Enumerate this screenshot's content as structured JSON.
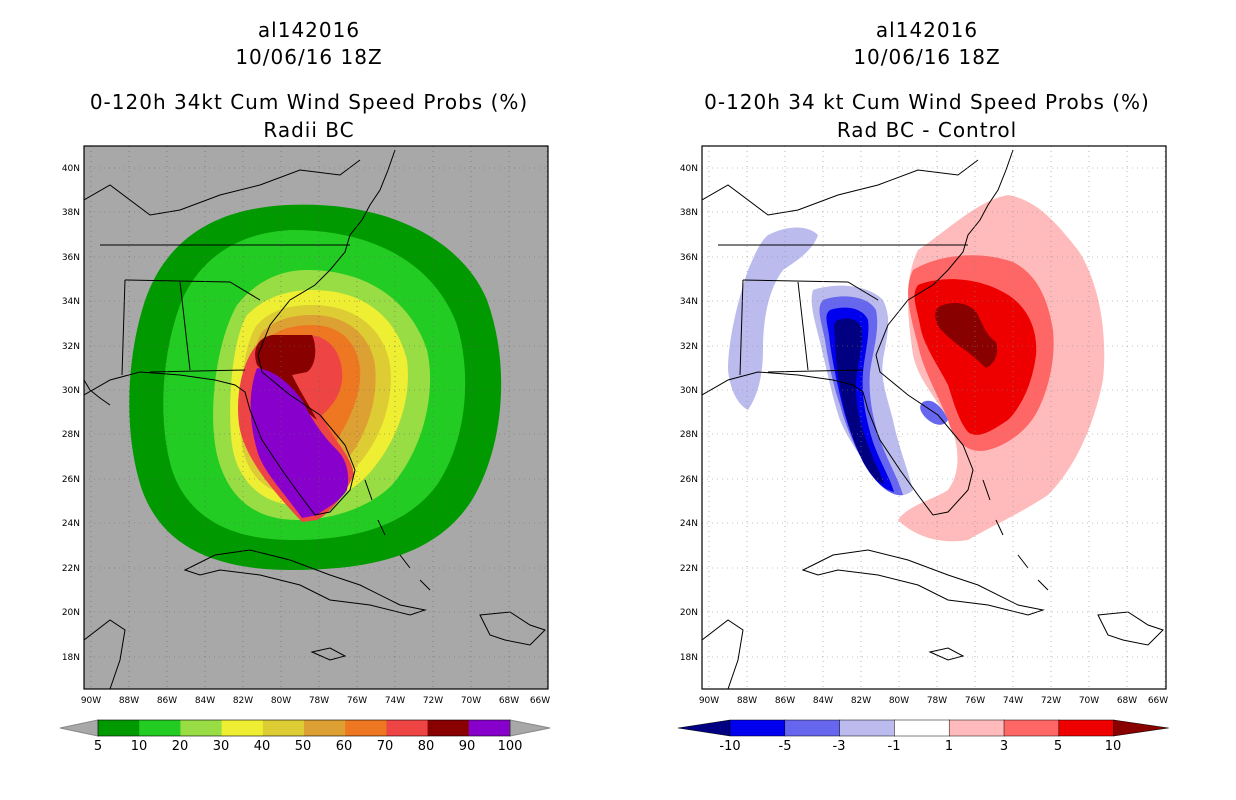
{
  "left_panel": {
    "storm_id": "al142016",
    "datetime": "10/06/16 18Z",
    "title": "0-120h 34kt Cum Wind Speed Probs (%)",
    "subtitle": "Radii BC",
    "background_color": "#a8a8a8",
    "colorbar": {
      "labels": [
        "5",
        "10",
        "20",
        "30",
        "40",
        "50",
        "60",
        "70",
        "80",
        "90",
        "100"
      ],
      "colors": [
        "#009900",
        "#22cc22",
        "#99dd44",
        "#eeee33",
        "#ddcc33",
        "#dda033",
        "#ee7722",
        "#ee4444",
        "#880000",
        "#8800cc"
      ]
    }
  },
  "right_panel": {
    "storm_id": "al142016",
    "datetime": "10/06/16 18Z",
    "title": "0-120h 34 kt Cum Wind Speed Probs (%)",
    "subtitle": "Rad BC - Control",
    "background_color": "#ffffff",
    "colorbar": {
      "labels": [
        "-10",
        "-5",
        "-3",
        "-1",
        "1",
        "3",
        "5",
        "10"
      ],
      "colors": [
        "#000080",
        "#0000ee",
        "#6666ee",
        "#bbbbee",
        "#ffffff",
        "#ffbbbb",
        "#ff6666",
        "#ee0000",
        "#880000"
      ]
    }
  },
  "map_axes": {
    "lat_labels": [
      "40N",
      "38N",
      "36N",
      "34N",
      "32N",
      "30N",
      "28N",
      "26N",
      "24N",
      "22N",
      "20N",
      "18N"
    ],
    "lon_labels": [
      "90W",
      "88W",
      "86W",
      "84W",
      "82W",
      "80W",
      "78W",
      "76W",
      "74W",
      "72W",
      "70W",
      "68W",
      "66W"
    ],
    "lat_values": [
      40,
      38,
      36,
      34,
      32,
      30,
      28,
      26,
      24,
      22,
      20,
      18
    ],
    "lon_values": [
      -90,
      -88,
      -86,
      -84,
      -82,
      -80,
      -78,
      -76,
      -74,
      -72,
      -70,
      -68,
      -66
    ]
  }
}
